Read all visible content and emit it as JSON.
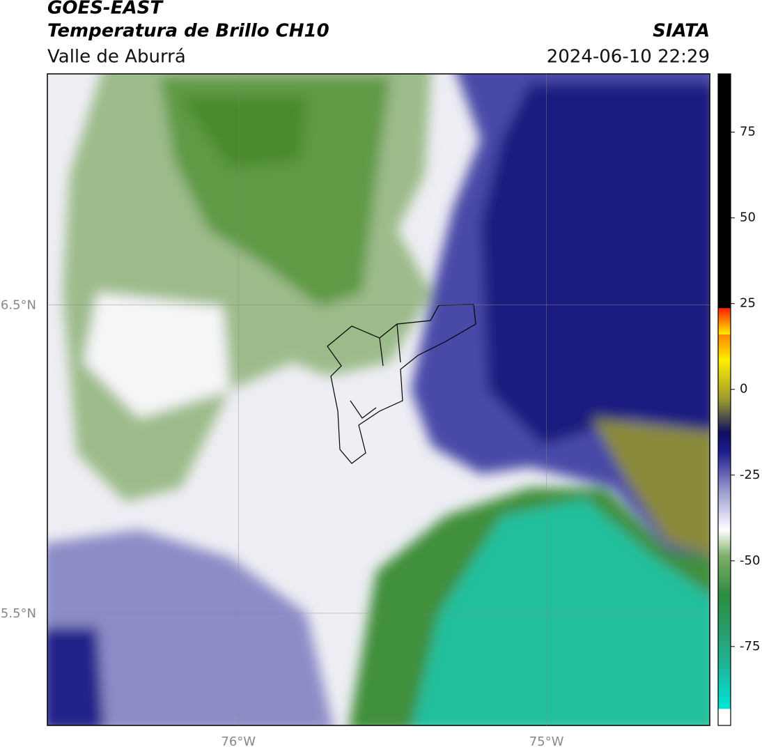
{
  "header": {
    "title": "GOES-EAST",
    "subtitle": "Temperatura de Brillo CH10",
    "region": "Valle de Aburrá",
    "source": "SIATA",
    "datetime": "2024-06-10 22:29"
  },
  "map": {
    "lat_lim": [
      5.136,
      7.25
    ],
    "lon_lim": [
      -76.62,
      -74.47
    ],
    "lat_ticks": [
      {
        "value": 6.5,
        "label": "6.5°N"
      },
      {
        "value": 5.5,
        "label": "5.5°N"
      }
    ],
    "lon_ticks": [
      {
        "value": -76,
        "label": "76°W"
      },
      {
        "value": -75,
        "label": "75°W"
      }
    ]
  },
  "colorbar": {
    "lim": [
      -98,
      92
    ],
    "ticks": [
      75,
      50,
      25,
      0,
      -25,
      -50,
      -75
    ]
  }
}
